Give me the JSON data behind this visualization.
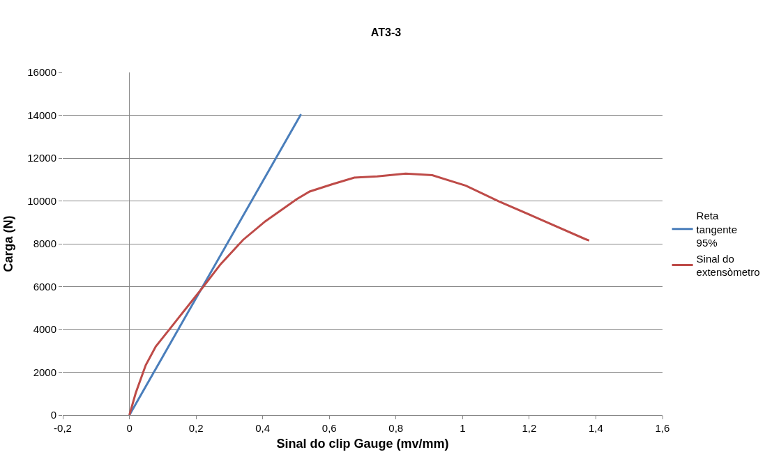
{
  "chart_data": {
    "type": "line",
    "title": "AT3-3",
    "xlabel": "Sinal do clip Gauge (mv/mm)",
    "ylabel": "Carga (N)",
    "xlim": [
      -0.2,
      1.6
    ],
    "xticks": [
      {
        "value": -0.2,
        "label": "-0,2"
      },
      0,
      {
        "value": 0.2,
        "label": "0,2"
      },
      {
        "value": 0.4,
        "label": "0,4"
      },
      {
        "value": 0.6,
        "label": "0,6"
      },
      {
        "value": 0.8,
        "label": "0,8"
      },
      1,
      {
        "value": 1.2,
        "label": "1,2"
      },
      {
        "value": 1.4,
        "label": "1,4"
      },
      {
        "value": 1.6,
        "label": "1,6"
      }
    ],
    "ylim": [
      0,
      16000
    ],
    "yticks": [
      0,
      2000,
      4000,
      6000,
      8000,
      10000,
      12000,
      14000,
      16000
    ],
    "grid": "y",
    "ref_lines": [
      {
        "axis": "x",
        "value": 0,
        "color": "#868686"
      }
    ],
    "legend": "right",
    "marker": "none",
    "line_style": "solid",
    "series": [
      {
        "name": "Reta tangente 95%",
        "color": "#4a7ebb",
        "x": [
          0,
          0.515
        ],
        "values": [
          0,
          14050
        ]
      },
      {
        "name": "Sinal do extensòmetro",
        "color": "#be4b48",
        "x": [
          0,
          0.019,
          0.049,
          0.079,
          0.126,
          0.173,
          0.22,
          0.274,
          0.341,
          0.408,
          0.502,
          0.541,
          0.609,
          0.675,
          0.744,
          0.829,
          0.909,
          1.01,
          1.11,
          1.21,
          1.368,
          1.38
        ],
        "values": [
          0,
          1030,
          2330,
          3200,
          4120,
          5040,
          5960,
          7050,
          8180,
          9050,
          10080,
          10440,
          10780,
          11090,
          11150,
          11280,
          11200,
          10710,
          9970,
          9300,
          8220,
          8150
        ]
      }
    ]
  }
}
